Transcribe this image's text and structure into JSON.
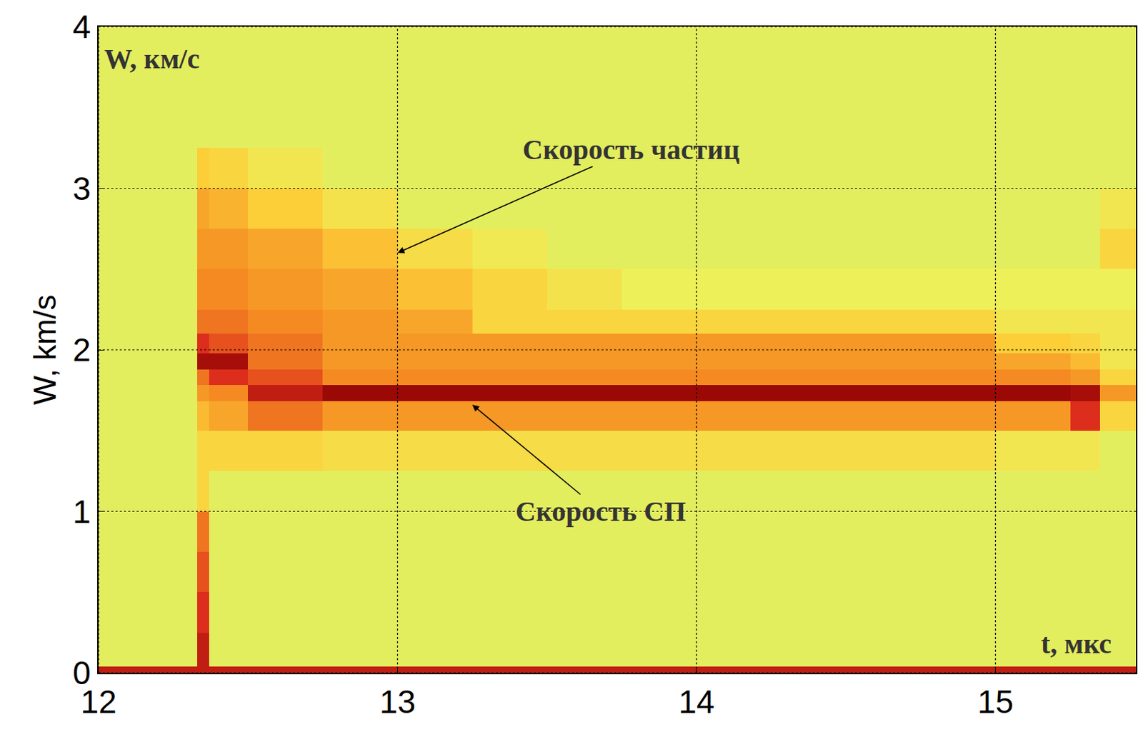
{
  "chart_data": {
    "type": "heatmap",
    "y_label": "W, km/s",
    "x": [
      12,
      12.33,
      12.37,
      12.5,
      12.75,
      13,
      13.25,
      13.5,
      13.75,
      14,
      14.25,
      14.5,
      14.75,
      15,
      15.25,
      15.35,
      15.47
    ],
    "y": [
      0,
      0.04,
      0.25,
      0.5,
      0.75,
      1.0,
      1.25,
      1.5,
      1.68,
      1.78,
      1.88,
      1.98,
      2.1,
      2.25,
      2.5,
      2.75,
      3.0,
      3.25,
      3.5,
      3.75,
      4.0
    ],
    "z": [
      [
        0.9,
        0.9,
        0.9,
        0.9,
        0.9,
        0.9,
        0.9,
        0.9,
        0.9,
        0.9,
        0.9,
        0.9,
        0.9,
        0.9,
        0.9,
        0.9
      ],
      [
        0.5,
        0.9,
        0.5,
        0.5,
        0.5,
        0.5,
        0.5,
        0.5,
        0.5,
        0.5,
        0.5,
        0.5,
        0.5,
        0.5,
        0.5,
        0.5
      ],
      [
        0.5,
        0.85,
        0.5,
        0.5,
        0.5,
        0.5,
        0.5,
        0.5,
        0.5,
        0.5,
        0.5,
        0.5,
        0.5,
        0.5,
        0.5,
        0.5
      ],
      [
        0.5,
        0.8,
        0.5,
        0.5,
        0.5,
        0.5,
        0.5,
        0.5,
        0.5,
        0.5,
        0.5,
        0.5,
        0.5,
        0.5,
        0.5,
        0.5
      ],
      [
        0.5,
        0.75,
        0.5,
        0.5,
        0.5,
        0.5,
        0.5,
        0.5,
        0.5,
        0.5,
        0.5,
        0.5,
        0.5,
        0.5,
        0.5,
        0.5
      ],
      [
        0.5,
        0.6,
        0.5,
        0.5,
        0.5,
        0.5,
        0.5,
        0.5,
        0.5,
        0.5,
        0.5,
        0.5,
        0.5,
        0.5,
        0.5,
        0.5
      ],
      [
        0.5,
        0.6,
        0.6,
        0.6,
        0.58,
        0.58,
        0.58,
        0.58,
        0.58,
        0.58,
        0.58,
        0.58,
        0.58,
        0.55,
        0.55,
        0.5
      ],
      [
        0.5,
        0.65,
        0.68,
        0.75,
        0.7,
        0.7,
        0.7,
        0.7,
        0.7,
        0.7,
        0.7,
        0.7,
        0.7,
        0.7,
        0.85,
        0.6
      ],
      [
        0.5,
        0.7,
        0.72,
        0.9,
        0.97,
        0.97,
        0.97,
        0.97,
        0.97,
        0.97,
        0.97,
        0.97,
        0.97,
        0.97,
        0.95,
        0.7
      ],
      [
        0.5,
        0.75,
        0.85,
        0.8,
        0.72,
        0.72,
        0.72,
        0.72,
        0.72,
        0.72,
        0.72,
        0.72,
        0.72,
        0.72,
        0.7,
        0.6
      ],
      [
        0.5,
        0.95,
        0.95,
        0.75,
        0.7,
        0.7,
        0.7,
        0.7,
        0.7,
        0.7,
        0.7,
        0.7,
        0.7,
        0.68,
        0.65,
        0.55
      ],
      [
        0.5,
        0.85,
        0.8,
        0.75,
        0.7,
        0.7,
        0.7,
        0.7,
        0.7,
        0.7,
        0.7,
        0.7,
        0.7,
        0.62,
        0.6,
        0.55
      ],
      [
        0.5,
        0.75,
        0.75,
        0.72,
        0.7,
        0.68,
        0.6,
        0.6,
        0.6,
        0.6,
        0.6,
        0.6,
        0.6,
        0.55,
        0.55,
        0.55
      ],
      [
        0.5,
        0.72,
        0.72,
        0.7,
        0.68,
        0.64,
        0.6,
        0.56,
        0.52,
        0.52,
        0.52,
        0.52,
        0.52,
        0.52,
        0.52,
        0.52
      ],
      [
        0.5,
        0.7,
        0.7,
        0.68,
        0.64,
        0.58,
        0.54,
        0.5,
        0.5,
        0.5,
        0.5,
        0.5,
        0.5,
        0.5,
        0.5,
        0.6
      ],
      [
        0.5,
        0.68,
        0.66,
        0.62,
        0.56,
        0.5,
        0.5,
        0.5,
        0.5,
        0.5,
        0.5,
        0.5,
        0.5,
        0.5,
        0.5,
        0.55
      ],
      [
        0.5,
        0.62,
        0.6,
        0.55,
        0.5,
        0.5,
        0.5,
        0.5,
        0.5,
        0.5,
        0.5,
        0.5,
        0.5,
        0.5,
        0.5,
        0.5
      ],
      [
        0.5,
        0.5,
        0.5,
        0.5,
        0.5,
        0.5,
        0.5,
        0.5,
        0.5,
        0.5,
        0.5,
        0.5,
        0.5,
        0.5,
        0.5,
        0.5
      ],
      [
        0.5,
        0.5,
        0.5,
        0.5,
        0.5,
        0.5,
        0.5,
        0.5,
        0.5,
        0.5,
        0.5,
        0.5,
        0.5,
        0.5,
        0.5,
        0.5
      ],
      [
        0.5,
        0.5,
        0.5,
        0.5,
        0.5,
        0.5,
        0.5,
        0.5,
        0.5,
        0.5,
        0.5,
        0.5,
        0.5,
        0.5,
        0.5,
        0.5
      ]
    ],
    "zlim": [
      0,
      1
    ],
    "xlim": [
      12,
      15.47
    ],
    "ylim": [
      0,
      4
    ],
    "xticks": [
      12,
      13,
      14,
      15
    ],
    "yticks": [
      0,
      1,
      2,
      3,
      4
    ],
    "grid": true,
    "annotations": [
      {
        "text": "W, км/с",
        "x": 12.18,
        "y": 3.8
      },
      {
        "text": "Скорость частиц",
        "x": 13.0,
        "y": 2.6,
        "text_x": 13.78,
        "text_y": 3.24
      },
      {
        "text": "Скорость СП",
        "x": 13.25,
        "y": 1.66,
        "text_x": 13.68,
        "text_y": 1.0
      },
      {
        "text": "t, мкс",
        "x": 15.27,
        "y": 0.18
      }
    ]
  }
}
